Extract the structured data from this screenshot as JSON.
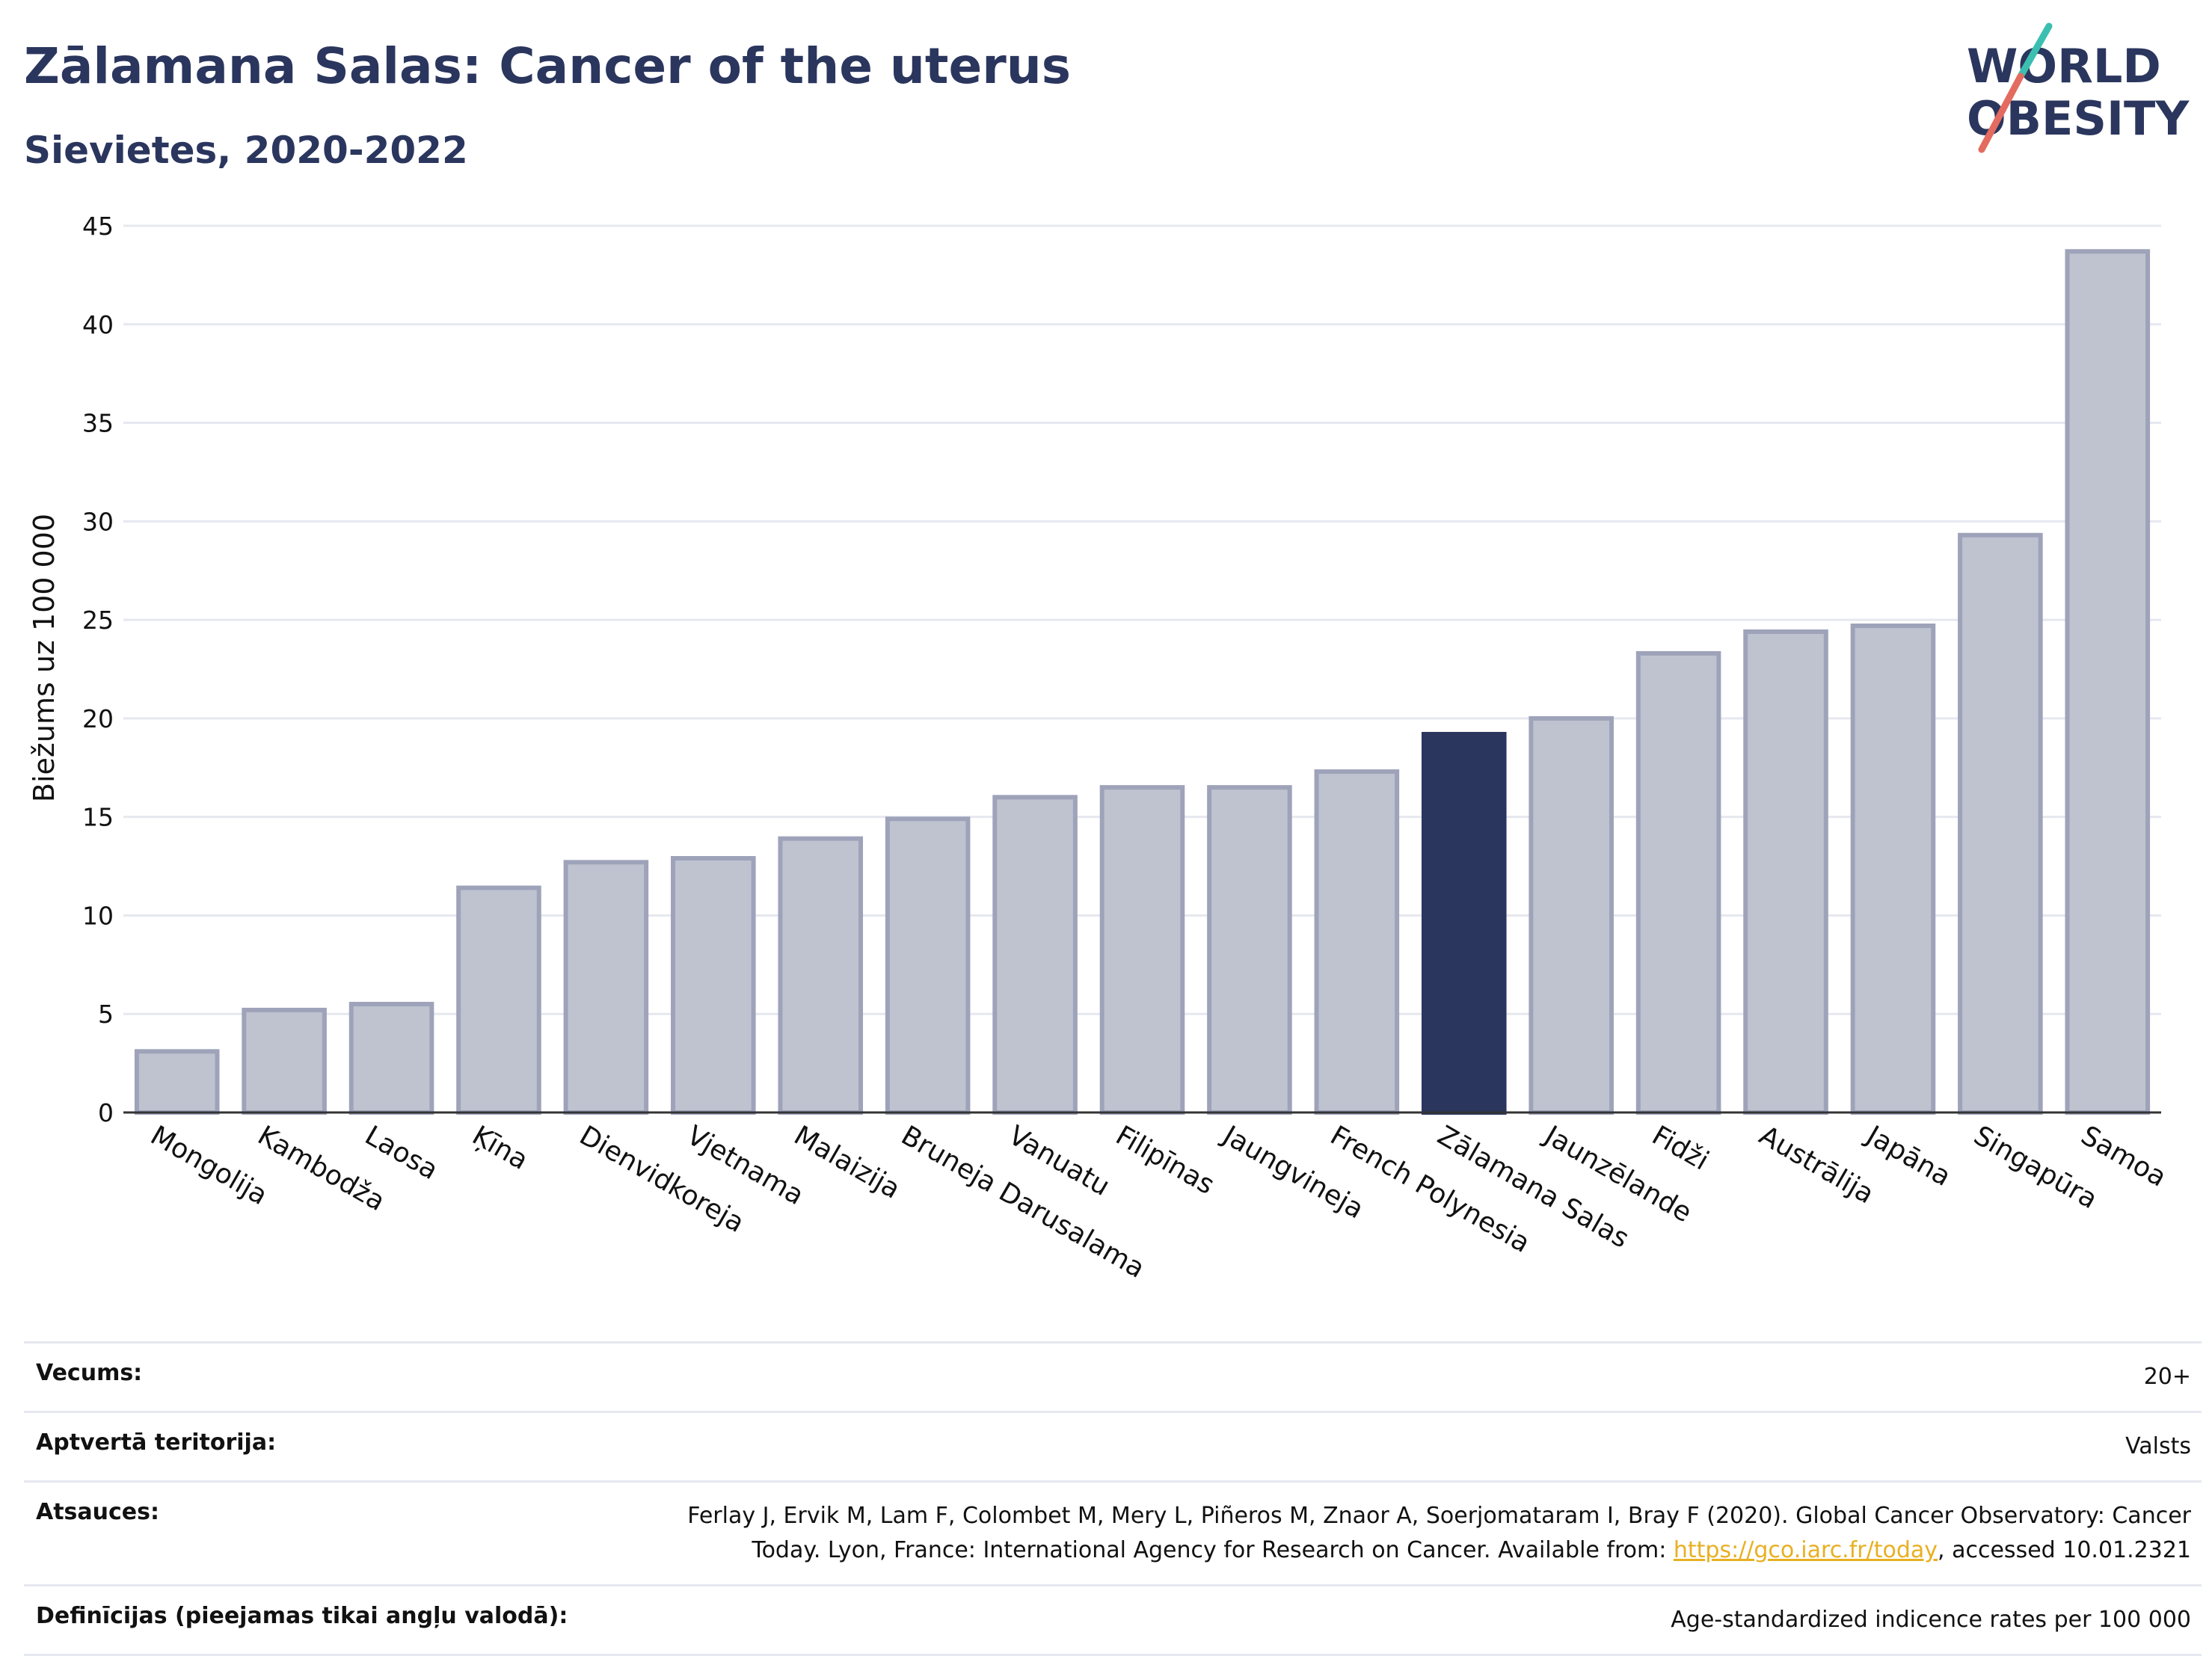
{
  "header": {
    "title": "Zālamana Salas: Cancer of the uterus",
    "subtitle": "Sievietes, 2020-2022"
  },
  "logo": {
    "line1": "WORLD",
    "line2": "OBESITY",
    "colors": {
      "text": "#2b365e",
      "slash_teal": "#3bbfb0",
      "slash_red": "#e36b5f"
    }
  },
  "chart_data": {
    "type": "bar",
    "title": "Zālamana Salas: Cancer of the uterus",
    "subtitle": "Sievietes, 2020-2022",
    "ylabel": "Biežums uz 100 000",
    "xlabel": "",
    "ylim": [
      0,
      45
    ],
    "yticks": [
      0,
      5,
      10,
      15,
      20,
      25,
      30,
      35,
      40,
      45
    ],
    "grid": true,
    "highlight": "Zālamana Salas",
    "colors": {
      "bar": "#bfc3d0",
      "bar_edge": "#9ea3ba",
      "highlight": "#2b365e"
    },
    "categories": [
      "Mongolija",
      "Kambodža",
      "Laosa",
      "Ķīna",
      "Dienvidkoreja",
      "Vjetnama",
      "Malaizija",
      "Bruneja Darusalama",
      "Vanuatu",
      "Filipīnas",
      "Jaungvineja",
      "French Polynesia",
      "Zālamana Salas",
      "Jaunzēlande",
      "Fidži",
      "Austrālija",
      "Japāna",
      "Singapūra",
      "Samoa"
    ],
    "values": [
      3.1,
      5.2,
      5.5,
      11.4,
      12.7,
      12.9,
      13.9,
      14.9,
      16.0,
      16.5,
      16.5,
      17.3,
      19.2,
      20.0,
      23.3,
      24.4,
      24.7,
      29.3,
      43.7
    ]
  },
  "meta": {
    "rows": [
      {
        "label": "Vecums:",
        "value": "20+"
      },
      {
        "label": "Aptvertā teritorija:",
        "value": "Valsts"
      },
      {
        "label": "Atsauces:",
        "value_line1": "Ferlay J, Ervik M, Lam F, Colombet M, Mery L, Piñeros M, Znaor A, Soerjomataram I, Bray F (2020). Global Cancer Observatory: Cancer",
        "value_line2_pre": "Today. Lyon, France: International Agency for Research on Cancer. Available from: ",
        "link": "https://gco.iarc.fr/today",
        "value_line2_post": ", accessed 10.01.2321"
      },
      {
        "label": "Definīcijas (pieejamas tikai angļu valodā):",
        "value": "Age-standardized indicence rates per 100 000"
      }
    ]
  }
}
